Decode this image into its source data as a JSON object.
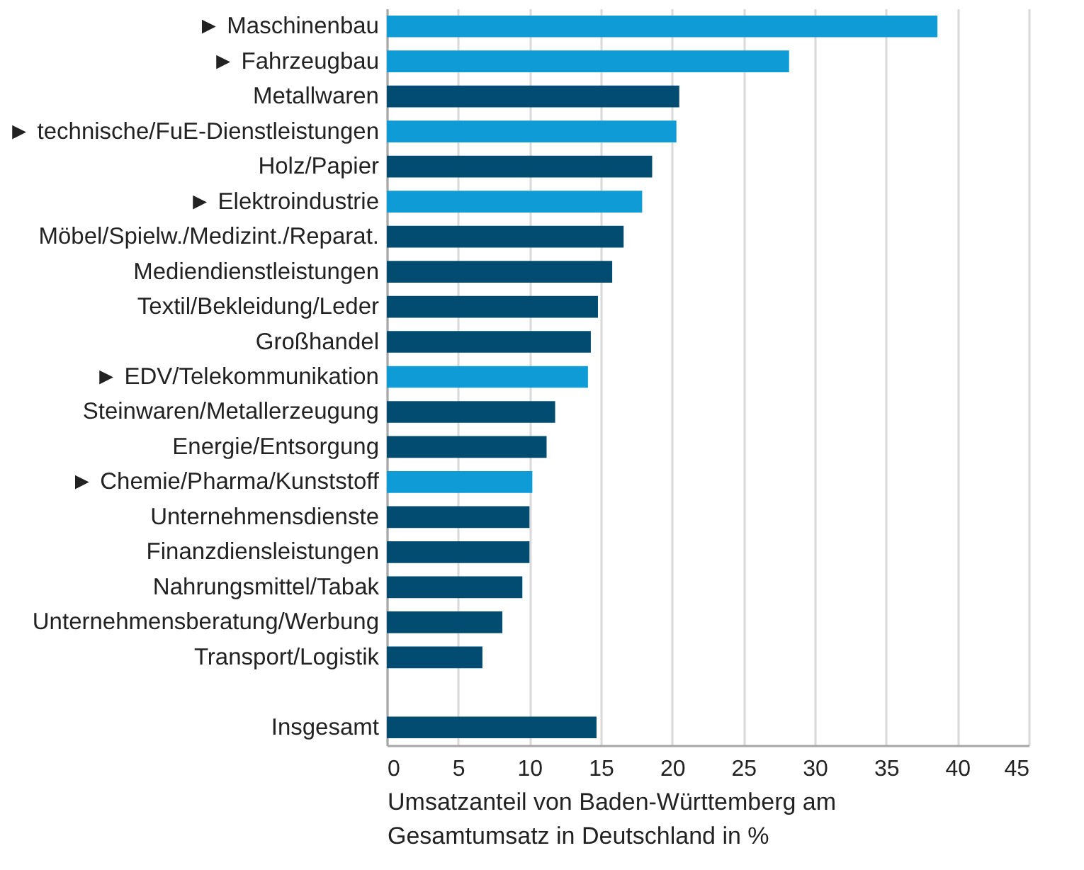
{
  "chart_data": {
    "type": "bar",
    "orientation": "horizontal",
    "xlabel": "Umsatzanteil von Baden-Württemberg am Gesamtumsatz in Deutschland in %",
    "categories": [
      "► Maschinenbau",
      "► Fahrzeugbau",
      "Metallwaren",
      "► technische/FuE-Dienstleistungen",
      "Holz/Papier",
      "► Elektroindustrie",
      "Möbel/Spielw./Medizint./Reparat.",
      "Mediendienstleistungen",
      "Textil/Bekleidung/Leder",
      "Großhandel",
      "► EDV/Telekommunikation",
      "Steinwaren/Metallerzeugung",
      "Energie/Entsorgung",
      "► Chemie/Pharma/Kunststoff",
      "Unternehmensdienste",
      "Finanzdiensleistungen",
      "Nahrungsmittel/Tabak",
      "Unternehmensberatung/Werbung",
      "Transport/Logistik",
      null,
      "Insgesamt"
    ],
    "values": [
      38.6,
      28.2,
      20.5,
      20.3,
      18.6,
      17.9,
      16.6,
      15.8,
      14.8,
      14.3,
      14.1,
      11.8,
      11.2,
      10.2,
      10.0,
      10.0,
      9.5,
      8.1,
      6.7,
      null,
      14.7
    ],
    "colors": [
      "#0e9bd6",
      "#0e9bd6",
      "#024c72",
      "#0e9bd6",
      "#024c72",
      "#0e9bd6",
      "#024c72",
      "#024c72",
      "#024c72",
      "#024c72",
      "#0e9bd6",
      "#024c72",
      "#024c72",
      "#0e9bd6",
      "#024c72",
      "#024c72",
      "#024c72",
      "#024c72",
      "#024c72",
      "#024c72",
      "#024c72"
    ],
    "xlim": [
      0,
      45
    ],
    "xticks": [
      0,
      5,
      10,
      15,
      20,
      25,
      30,
      35,
      40,
      45
    ],
    "grid": "x"
  }
}
